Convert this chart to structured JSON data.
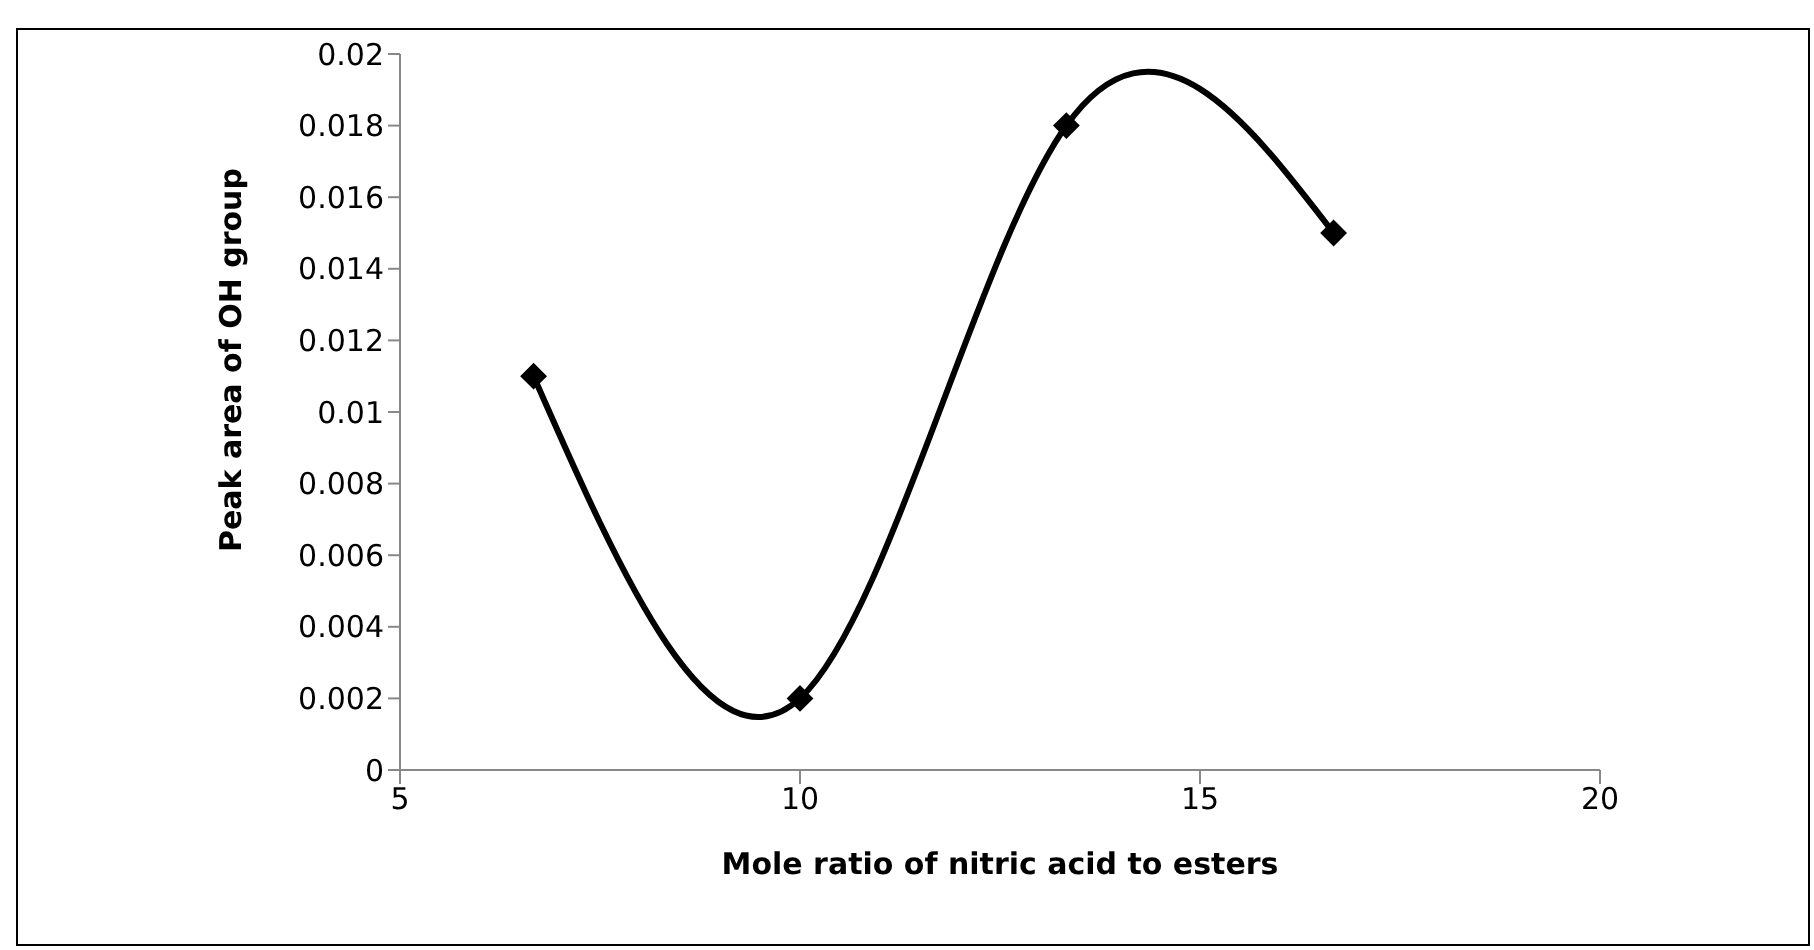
{
  "chart_data": {
    "type": "line",
    "xlabel": "Mole ratio of nitric acid to esters",
    "ylabel": "Peak area of OH group",
    "x": [
      6.67,
      10,
      13.33,
      16.67
    ],
    "series": [
      {
        "color": "#000000",
        "values": [
          0.011,
          0.002,
          0.018,
          0.015
        ]
      }
    ],
    "xlim": [
      5,
      20
    ],
    "xticks": [
      5,
      10,
      15,
      20
    ],
    "ylim": [
      0,
      0.02
    ],
    "yticks": [
      0,
      0.002,
      0.004,
      0.006,
      0.008,
      0.01,
      0.012,
      0.014,
      0.016,
      0.018,
      0.02
    ],
    "grid": false,
    "legend": false,
    "marker": "diamond",
    "line_style": "solid"
  }
}
